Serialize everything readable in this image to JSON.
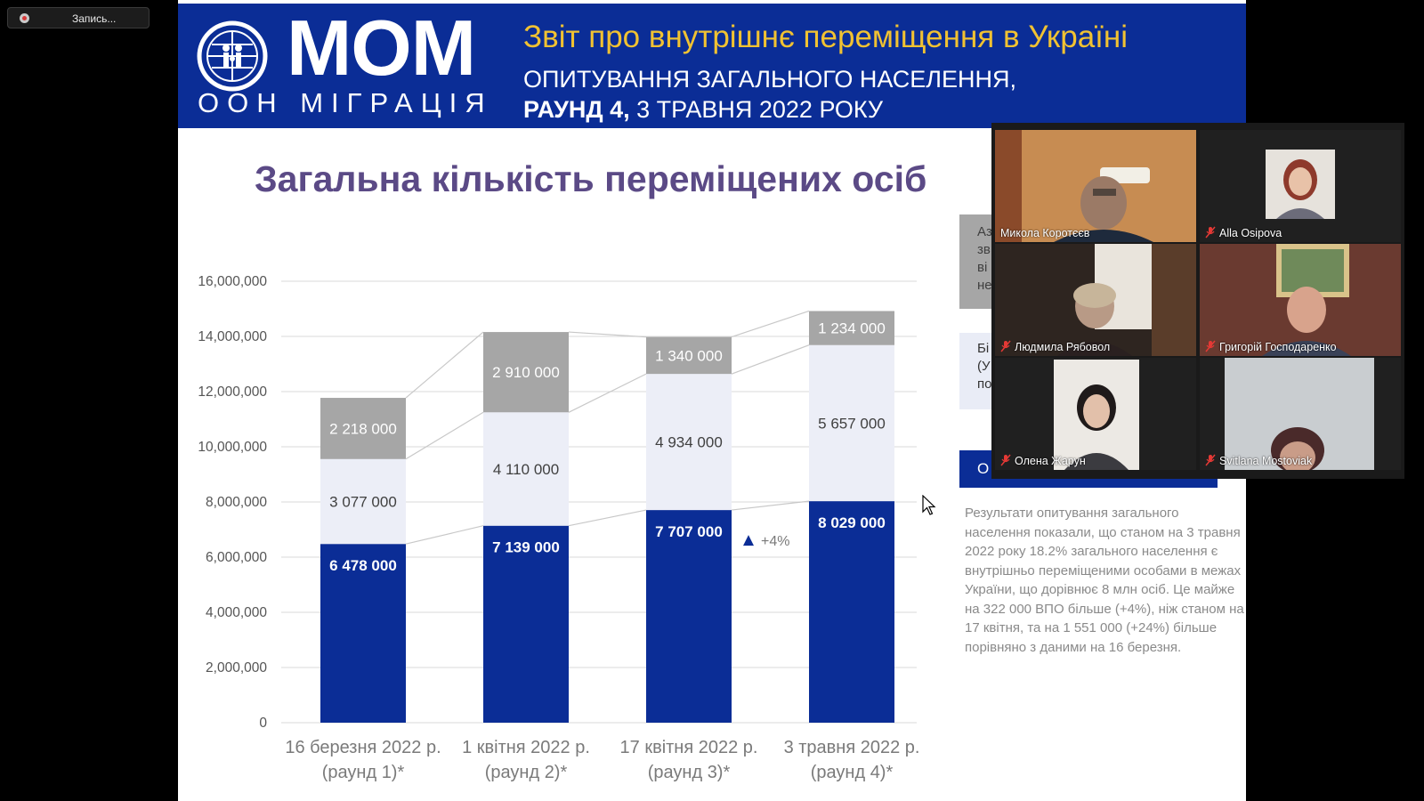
{
  "recording": {
    "label": "Запись..."
  },
  "banner": {
    "logo_main": "МОМ",
    "logo_sub": "ООН МІГРАЦІЯ",
    "title": "Звіт про внутрішнє переміщення в Україні",
    "subtitle_line1": "ОПИТУВАННЯ ЗАГАЛЬНОГО НАСЕЛЕННЯ,",
    "subtitle_line2_bold": "РАУНД 4,",
    "subtitle_line2_rest": " 3 ТРАВНЯ 2022 РОКУ"
  },
  "slide": {
    "title": "Загальна кількість переміщених осіб",
    "grey_box_fragment": "Аз\nзв\nві\nне",
    "light_box_fragment": "Бі\n(У\nпо",
    "blue_box_fragment": "О",
    "note": "Результати опитування загального населення показали, що станом на 3 травня 2022 року 18.2% загального населення є внутрішньо переміщеними особами в межах України, що дорівнює 8 млн осіб. Це майже на 322 000 ВПО більше (+4%), ніж станом на 17 квітня, та на 1 551 000 (+24%) більше порівняно з даними на 16 березня."
  },
  "chart_data": {
    "type": "bar",
    "stacked": true,
    "ylim": [
      0,
      16000000
    ],
    "ytick_labels": [
      "0",
      "2,000,000",
      "4,000,000",
      "6,000,000",
      "8,000,000",
      "10,000,000",
      "12,000,000",
      "14,000,000",
      "16,000,000"
    ],
    "categories": [
      [
        "16 березня 2022 р.",
        "(раунд 1)*"
      ],
      [
        "1 квітня 2022 р.",
        "(раунд 2)*"
      ],
      [
        "17 квітня 2022 р.",
        "(раунд 3)*"
      ],
      [
        "3 травня 2022 р.",
        "(раунд 4)*"
      ]
    ],
    "series": [
      {
        "values": [
          6478000,
          7139000,
          7707000,
          8029000
        ],
        "labels": [
          "6 478 000",
          "7 139 000",
          "7 707 000",
          "8 029 000"
        ],
        "color": "#0b2d96",
        "label_color": "#ffffff"
      },
      {
        "values": [
          3077000,
          4110000,
          4934000,
          5657000
        ],
        "labels": [
          "3 077 000",
          "4 110 000",
          "4 934 000",
          "5 657 000"
        ],
        "color": "#eceef7",
        "label_color": "#404040"
      },
      {
        "values": [
          2218000,
          2910000,
          1340000,
          1234000
        ],
        "labels": [
          "2 218 000",
          "2 910 000",
          "1 340 000",
          "1 234 000"
        ],
        "color": "#a6a6a6",
        "label_color": "#ffffff"
      }
    ],
    "annotation": {
      "text": "+4%",
      "marker": "up-triangle"
    },
    "grid": true
  },
  "participants": [
    {
      "name": "Микола Коротєєв",
      "muted": false,
      "active": true
    },
    {
      "name": "Alla Osipova",
      "muted": true,
      "active": false
    },
    {
      "name": "Людмила Рябовол",
      "muted": true,
      "active": false
    },
    {
      "name": "Григорій Господаренко",
      "muted": true,
      "active": false
    },
    {
      "name": "Олена Жарун",
      "muted": true,
      "active": false
    },
    {
      "name": "Svitlana Mostoviak",
      "muted": true,
      "active": false
    }
  ],
  "colors": {
    "banner": "#0b2d96",
    "title_gold": "#f1c232",
    "slide_title": "#5b4a86",
    "active_speaker": "#cde05a",
    "mute_red": "#e53935"
  }
}
